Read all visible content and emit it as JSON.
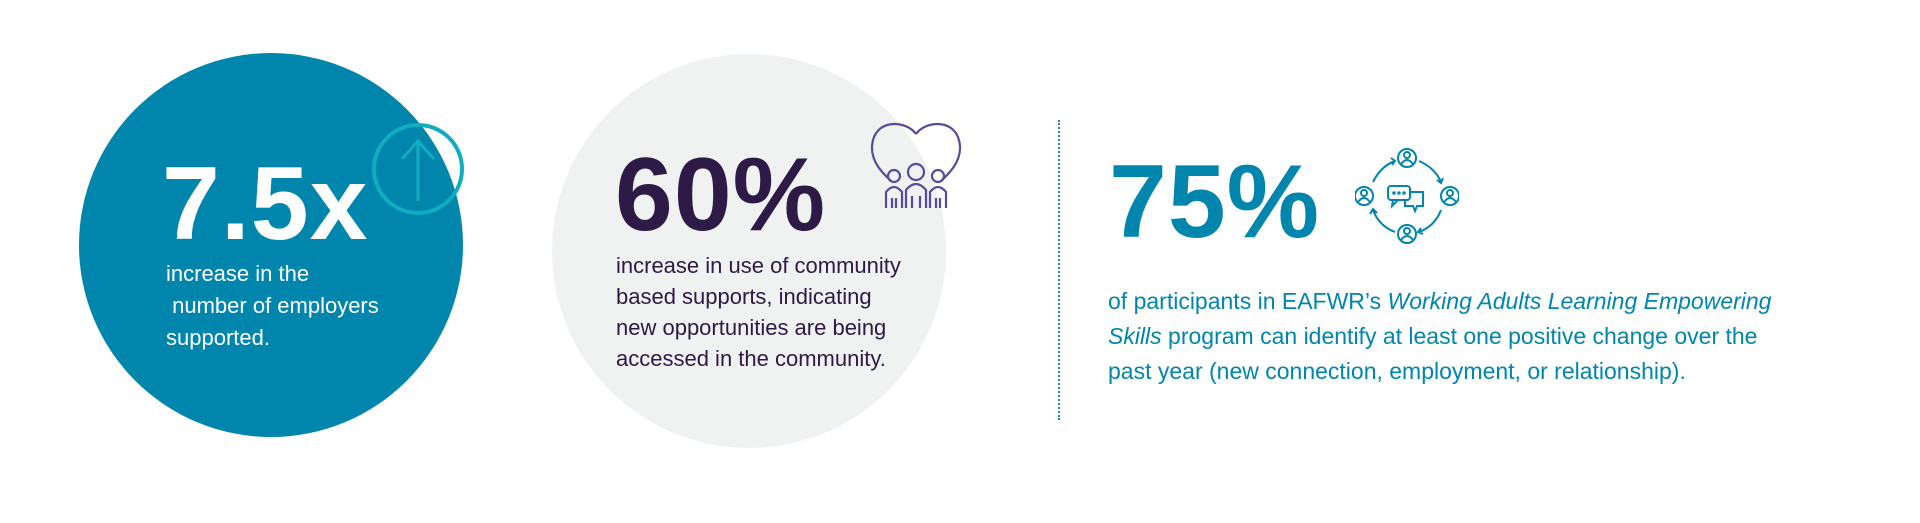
{
  "colors": {
    "teal": "#0086ad",
    "light_grey": "#f0f1f1",
    "purple_dark": "#2d1a47",
    "purple_icon": "#5b4a9b",
    "icon_ring": "#10adc1"
  },
  "stats": [
    {
      "value": "7.5x",
      "icon": "arrow-up-circle-icon",
      "lines": [
        "increase in the",
        " number of employers",
        "supported."
      ]
    },
    {
      "value": "60%",
      "icon": "heart-people-icon",
      "lines": [
        "increase in use of community",
        "based supports, indicating",
        "new opportunities are being",
        "accessed in the community."
      ]
    },
    {
      "value": "75%",
      "icon": "network-people-chat-icon",
      "text_pre": "of participants in EAFWR’s ",
      "text_italic_1": "Working Adults Learning Empowering",
      "text_italic_2": "Skills",
      "text_post_1": " program can identify at least one positive change over the",
      "text_post_2": "past year (new connection, employment, or relationship)."
    }
  ]
}
